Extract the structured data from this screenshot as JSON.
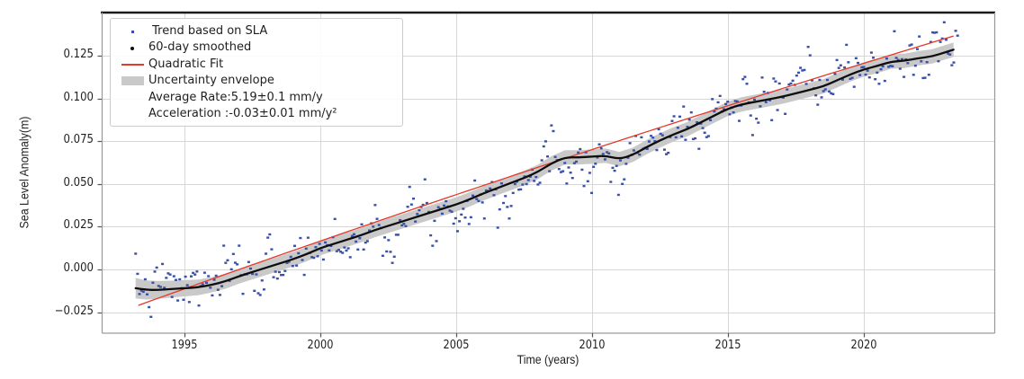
{
  "figure": {
    "background": "#ffffff",
    "colors": {
      "scatter": "#3a50a8",
      "smoothed": "#0d0d0d",
      "fit": "#e53828",
      "envelope": "#c9c9c9",
      "grid": "#d6d6d6",
      "spine_top": "#1b1b1b",
      "spine_other": "#9a9a9a",
      "tick": "#555555"
    }
  },
  "axes": {
    "xlabel": "Time (years)",
    "ylabel": "Sea Level Anomaly(m)"
  },
  "legend": {
    "entries": [
      {
        "marker": "scatter",
        "color": "#3a50a8",
        "label": " Trend based on SLA"
      },
      {
        "marker": "dot",
        "color": "#0d0d0d",
        "label": "60-day smoothed"
      },
      {
        "marker": "line",
        "color": "#e53828",
        "label": "Quadratic Fit"
      },
      {
        "marker": "patch",
        "color": "#c9c9c9",
        "label": "Uncertainty envelope"
      },
      {
        "marker": "none",
        "color": "",
        "label": "Average Rate:5.19±0.1 mm/y"
      },
      {
        "marker": "none",
        "color": "",
        "label": "Acceleration :-0.03±0.01 mm/y²"
      }
    ]
  },
  "chart_data": {
    "type": "scatter",
    "title": "",
    "xlabel": "Time (years)",
    "ylabel": "Sea Level Anomaly(m)",
    "xlim": [
      1991.95,
      2024.8
    ],
    "ylim": [
      -0.0373,
      0.1502
    ],
    "grid": true,
    "legend_position": "upper left",
    "xticks": [
      1995,
      2000,
      2005,
      2010,
      2015,
      2020
    ],
    "xtick_labels": [
      "1995",
      "2000",
      "2005",
      "2010",
      "2015",
      "2020"
    ],
    "yticks": [
      -0.025,
      0.0,
      0.025,
      0.05,
      0.075,
      0.1,
      0.125
    ],
    "ytick_labels": [
      "−0.025",
      "0.000",
      "0.025",
      "0.050",
      "0.075",
      "0.100",
      "0.125"
    ],
    "stats": {
      "average_rate_mm_per_yr": 5.19,
      "average_rate_uncertainty": 0.1,
      "acceleration_mm_per_yr2": -0.03,
      "acceleration_uncertainty": 0.01
    },
    "series": [
      {
        "name": "60-day smoothed",
        "type": "line",
        "points": [
          [
            1993.2,
            -0.011
          ],
          [
            1993.6,
            -0.012
          ],
          [
            1994.0,
            -0.012
          ],
          [
            1994.5,
            -0.0115
          ],
          [
            1995.0,
            -0.011
          ],
          [
            1995.5,
            -0.0105
          ],
          [
            1996.0,
            -0.009
          ],
          [
            1996.5,
            -0.007
          ],
          [
            1997.0,
            -0.004
          ],
          [
            1997.5,
            -0.0015
          ],
          [
            1998.0,
            0.001
          ],
          [
            1998.5,
            0.0035
          ],
          [
            1999.0,
            0.006
          ],
          [
            1999.5,
            0.009
          ],
          [
            2000.0,
            0.0125
          ],
          [
            2000.5,
            0.015
          ],
          [
            2001.0,
            0.0175
          ],
          [
            2001.5,
            0.02
          ],
          [
            2002.0,
            0.023
          ],
          [
            2002.5,
            0.0255
          ],
          [
            2003.0,
            0.028
          ],
          [
            2003.5,
            0.0305
          ],
          [
            2004.0,
            0.033
          ],
          [
            2004.5,
            0.0355
          ],
          [
            2005.0,
            0.038
          ],
          [
            2005.5,
            0.041
          ],
          [
            2006.0,
            0.0445
          ],
          [
            2006.5,
            0.0475
          ],
          [
            2007.0,
            0.0505
          ],
          [
            2007.5,
            0.0535
          ],
          [
            2008.0,
            0.057
          ],
          [
            2008.5,
            0.062
          ],
          [
            2009.0,
            0.0655
          ],
          [
            2009.5,
            0.0655
          ],
          [
            2010.0,
            0.066
          ],
          [
            2010.5,
            0.0665
          ],
          [
            2011.0,
            0.0645
          ],
          [
            2011.5,
            0.067
          ],
          [
            2012.0,
            0.0715
          ],
          [
            2012.5,
            0.0755
          ],
          [
            2013.0,
            0.079
          ],
          [
            2013.5,
            0.082
          ],
          [
            2014.0,
            0.086
          ],
          [
            2014.5,
            0.09
          ],
          [
            2015.0,
            0.094
          ],
          [
            2015.5,
            0.0965
          ],
          [
            2016.0,
            0.098
          ],
          [
            2016.5,
            0.0995
          ],
          [
            2017.0,
            0.101
          ],
          [
            2017.5,
            0.103
          ],
          [
            2018.0,
            0.105
          ],
          [
            2018.5,
            0.107
          ],
          [
            2019.0,
            0.1105
          ],
          [
            2019.5,
            0.114
          ],
          [
            2020.0,
            0.117
          ],
          [
            2020.5,
            0.119
          ],
          [
            2021.0,
            0.1215
          ],
          [
            2021.5,
            0.122
          ],
          [
            2022.0,
            0.1235
          ],
          [
            2022.5,
            0.1245
          ],
          [
            2023.0,
            0.127
          ],
          [
            2023.3,
            0.1285
          ]
        ]
      },
      {
        "name": "Uncertainty envelope",
        "type": "band_around_smoothed",
        "halfwidth_base": 0.0042,
        "halfwidth_start_extra": 0.0018,
        "halfwidth_start_decay_years": 1.5
      },
      {
        "name": "Quadratic Fit",
        "type": "quadratic",
        "t0": 1993.3,
        "coeffs": [
          -0.021,
          0.005715,
          -1.55e-05
        ],
        "t_range": [
          1993.3,
          2023.4
        ]
      },
      {
        "name": "Trend based on SLA",
        "type": "scatter_noise_around_smoothed",
        "t_range": [
          1993.2,
          2023.45
        ],
        "n_points": 430,
        "noise_sigma": 0.0082,
        "noise_rho": 0.45,
        "seed": 7
      }
    ]
  }
}
